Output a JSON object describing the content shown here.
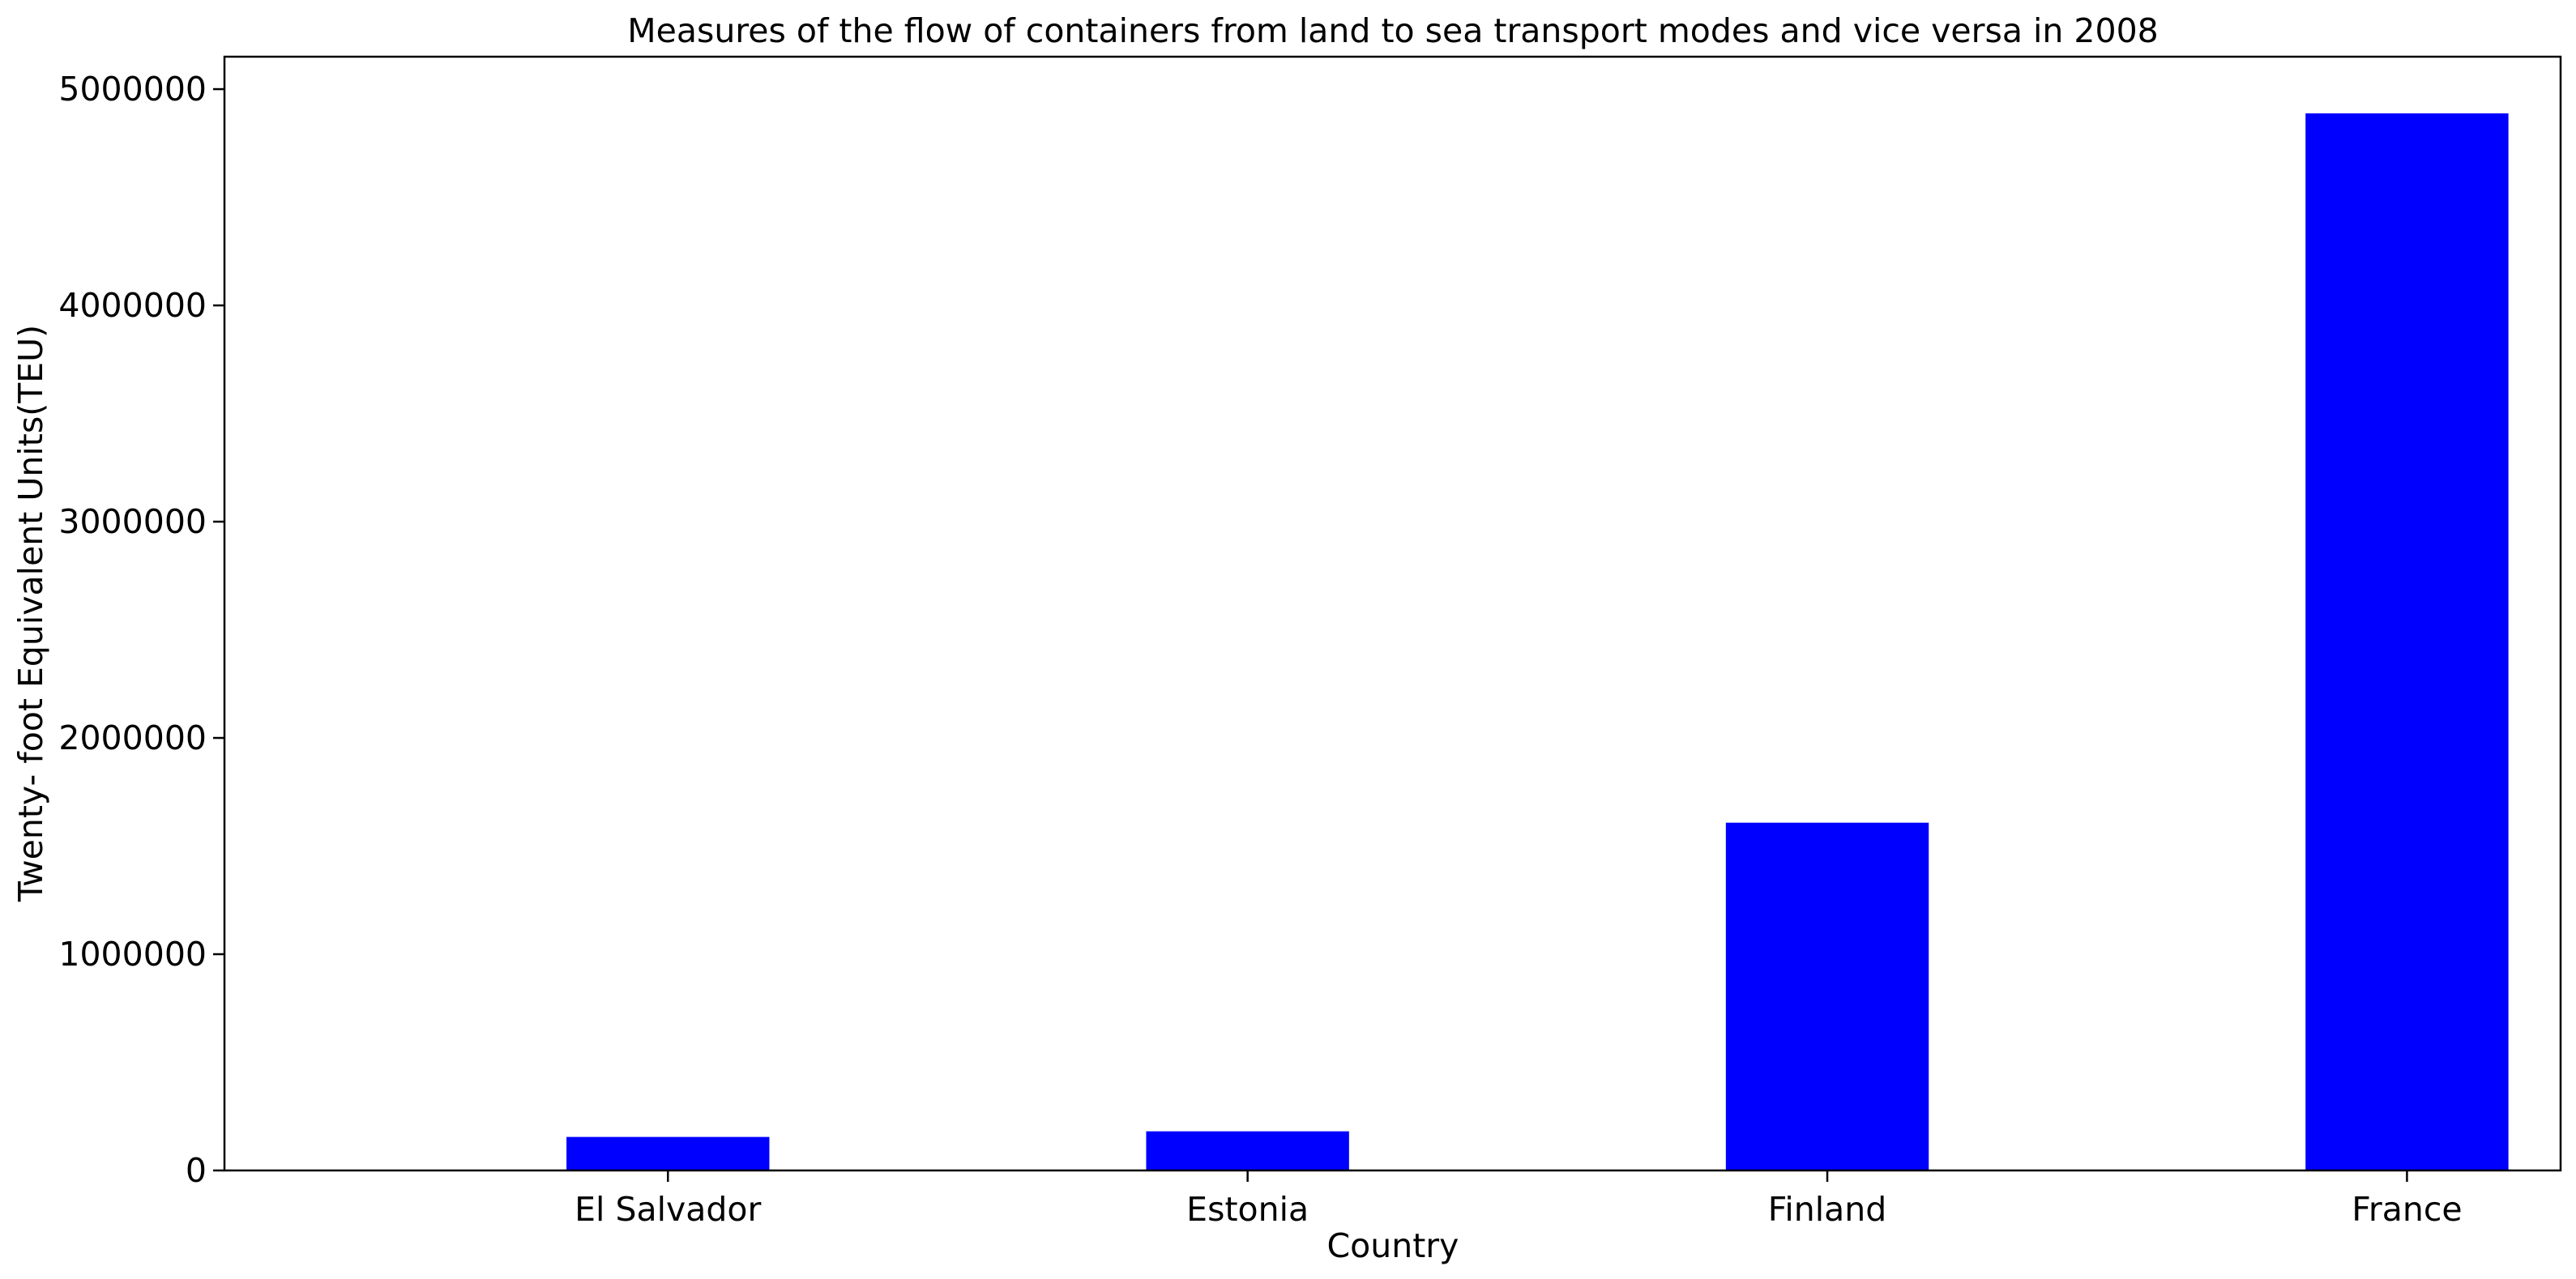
{
  "chart_data": {
    "type": "bar",
    "title": "Measures of the flow of containers from land to sea transport modes and vice versa in 2008",
    "xlabel": "Country",
    "ylabel": "Twenty- foot Equivalent Units(TEU)",
    "categories": [
      "El Salvador",
      "Estonia",
      "Finland",
      "France"
    ],
    "values": [
      155000,
      181000,
      1608000,
      4888000
    ],
    "ylim": [
      0,
      5150000
    ],
    "yticks": [
      0,
      1000000,
      2000000,
      3000000,
      4000000,
      5000000
    ],
    "ytick_labels": [
      "0",
      "1000000",
      "2000000",
      "3000000",
      "4000000",
      "5000000"
    ],
    "bar_color": "#0000ff",
    "grid": false,
    "legend": "none"
  }
}
